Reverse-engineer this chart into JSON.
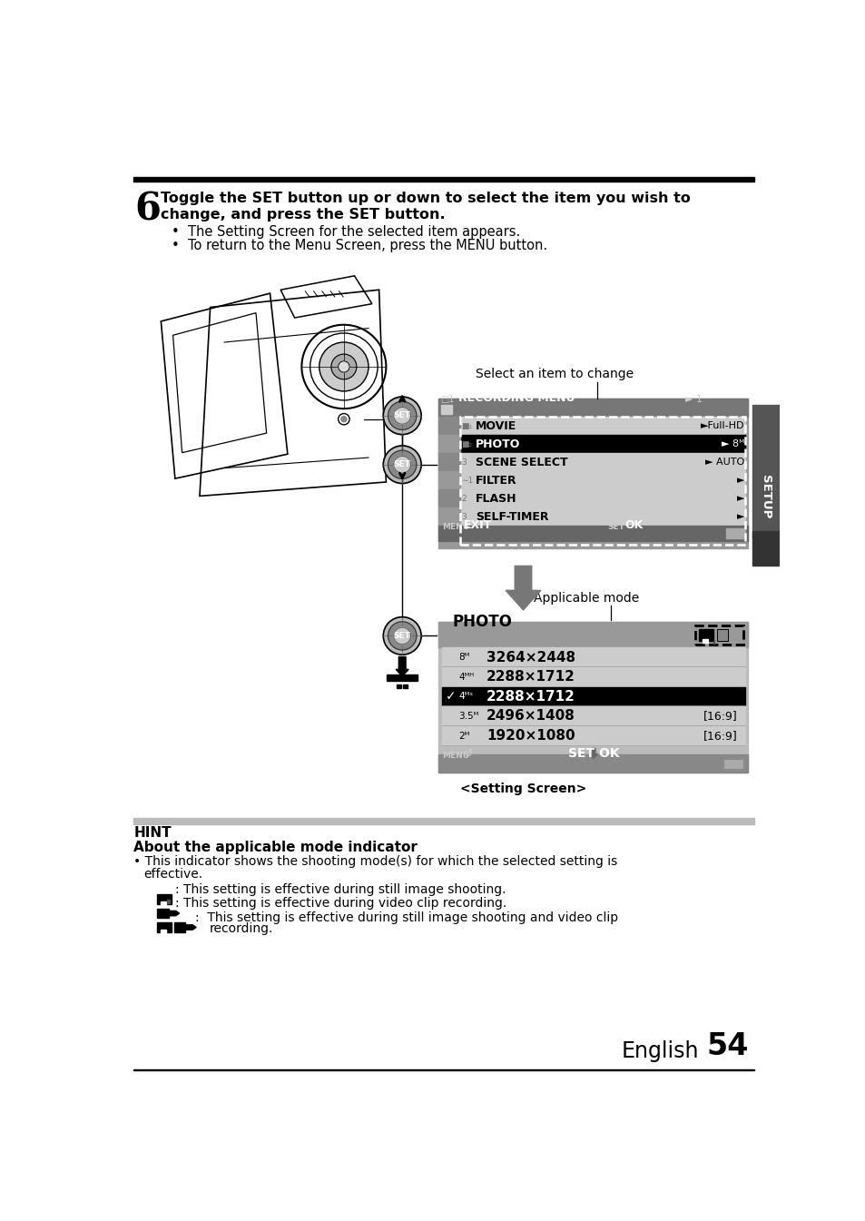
{
  "page_bg": "#ffffff",
  "step_number": "6",
  "step_line1": "Toggle the SET button up or down to select the item you wish to",
  "step_line2": "change, and press the SET button.",
  "bullet1": "The Setting Screen for the selected item appears.",
  "bullet2": "To return to the Menu Screen, press the MENU button.",
  "label_select": "Select an item to change",
  "label_applicable": "Applicable mode",
  "label_setting_screen": "<Setting Screen>",
  "setup_text": "SETUP",
  "setup_bg": "#555555",
  "hint_title": "HINT",
  "hint_subtitle": "About the applicable mode indicator",
  "hint_bullet": "This indicator shows the shooting mode(s) for which the selected setting is",
  "hint_bullet2": "effective.",
  "hint_line1": ": This setting is effective during still image shooting.",
  "hint_line2": ": This setting is effective during video clip recording.",
  "hint_line3": ":  This setting is effective during still image shooting and video clip",
  "hint_line3b": "recording.",
  "page_label": "English",
  "page_number": "54",
  "menu_bg": "#999999",
  "menu_header_bg": "#777777",
  "menu_item_light": "#cccccc",
  "menu_item_dark": "#aaaaaa",
  "menu_selected_bg": "#000000",
  "photo_bg": "#bbbbbb",
  "photo_header_bg": "#999999",
  "photo_item_bg": "#cccccc",
  "photo_selected_bg": "#000000",
  "hint_bar": "#cccccc",
  "arrow_color": "#777777"
}
